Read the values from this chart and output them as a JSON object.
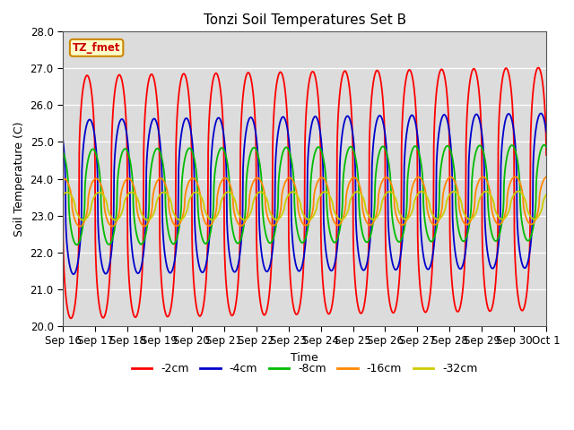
{
  "title": "Tonzi Soil Temperatures Set B",
  "xlabel": "Time",
  "ylabel": "Soil Temperature (C)",
  "ylim": [
    20.0,
    28.0
  ],
  "yticks": [
    20.0,
    21.0,
    22.0,
    23.0,
    24.0,
    25.0,
    26.0,
    27.0,
    28.0
  ],
  "annotation": "TZ_fmet",
  "bg_color": "#dcdcdc",
  "legend_entries": [
    "-2cm",
    "-4cm",
    "-8cm",
    "-16cm",
    "-32cm"
  ],
  "line_colors": [
    "#ff0000",
    "#0000cc",
    "#00bb00",
    "#ff8800",
    "#cccc00"
  ],
  "line_widths": [
    1.3,
    1.3,
    1.3,
    1.3,
    1.3
  ],
  "xtick_labels": [
    "Sep 16",
    "Sep 17",
    "Sep 18",
    "Sep 19",
    "Sep 20",
    "Sep 21",
    "Sep 22",
    "Sep 23",
    "Sep 24",
    "Sep 25",
    "Sep 26",
    "Sep 27",
    "Sep 28",
    "Sep 29",
    "Sep 30",
    "Oct 1"
  ],
  "n_days": 15,
  "pts_per_day": 288,
  "amplitudes": [
    3.3,
    2.1,
    1.3,
    0.65,
    0.38
  ],
  "means": [
    23.5,
    23.5,
    23.5,
    23.35,
    23.25
  ],
  "phase_shifts_days": [
    0.0,
    0.08,
    0.18,
    0.28,
    0.38
  ],
  "sharpness": [
    3.0,
    2.5,
    2.0,
    1.8,
    1.5
  ],
  "trend_per_day": [
    0.015,
    0.012,
    0.008,
    0.004,
    0.002
  ]
}
